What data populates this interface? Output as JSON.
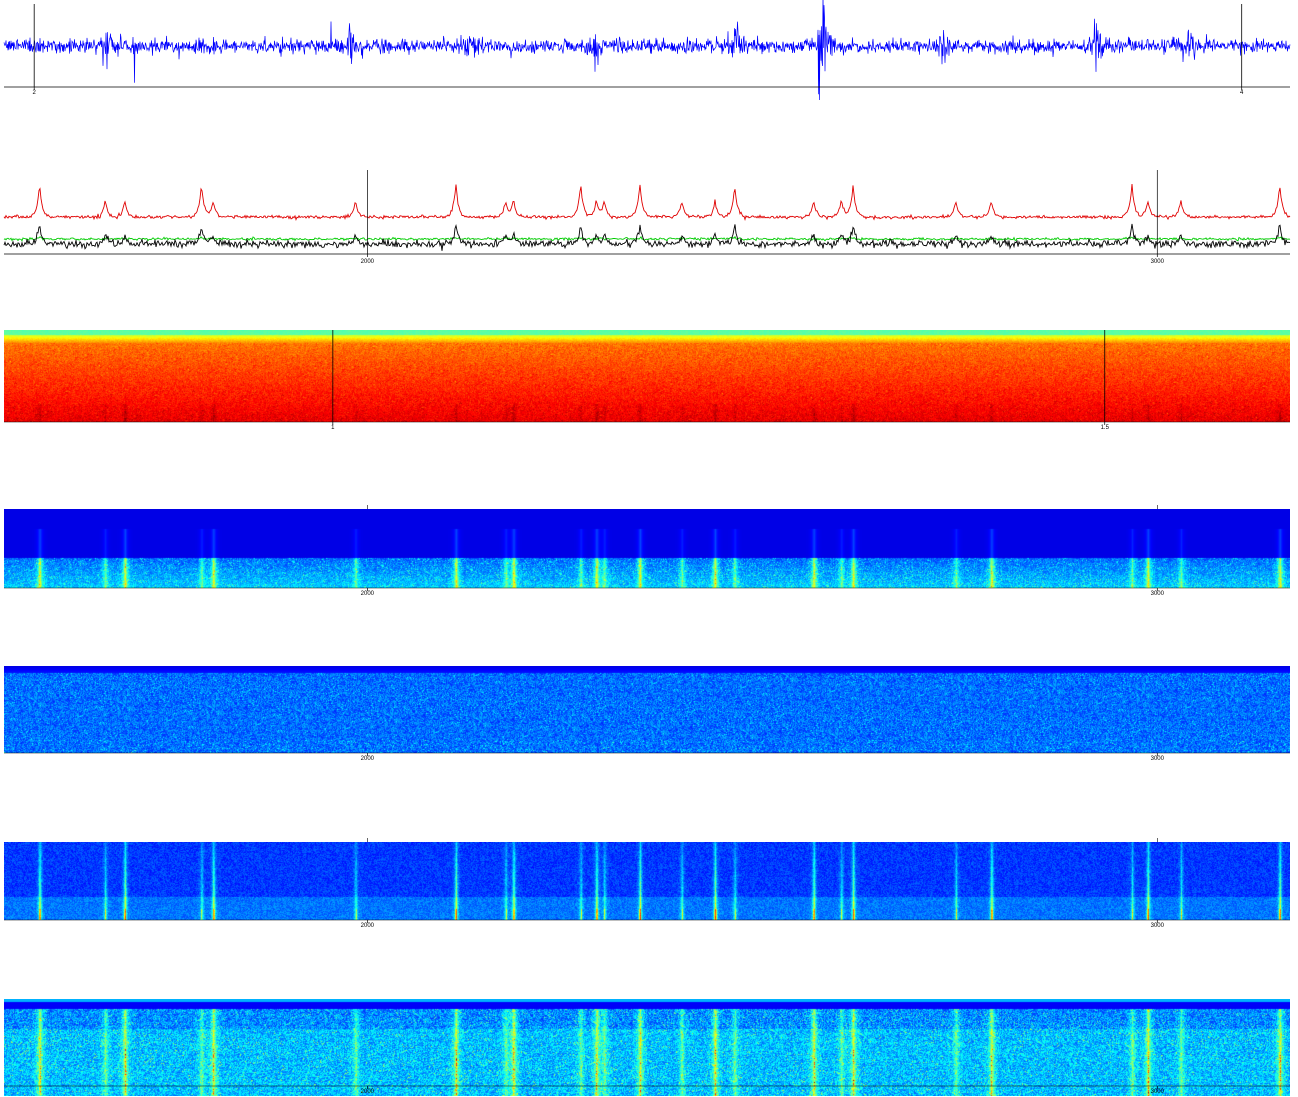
{
  "panels": [
    {
      "id": "waveform",
      "chart_data": {
        "type": "line",
        "series": [
          {
            "color": "#0000ff",
            "values": []
          }
        ],
        "xlim": [
          1.95,
          4.08
        ],
        "cursors": [
          2.0,
          4.0
        ],
        "ticks": [
          {
            "value": 2,
            "label": "2"
          },
          {
            "value": 4,
            "label": "4"
          }
        ],
        "bursts": [
          0.08,
          0.27,
          0.36,
          0.46,
          0.57,
          0.64,
          0.73,
          0.85,
          0.92
        ]
      }
    },
    {
      "id": "envelopes",
      "chart_data": {
        "type": "line",
        "series": [
          {
            "color": "#e00000",
            "values": []
          },
          {
            "color": "#00cc00",
            "values": []
          },
          {
            "color": "#000000",
            "values": []
          }
        ],
        "xlim": [
          1540,
          3168
        ],
        "cursors": [
          2000,
          3000
        ],
        "ticks": [
          {
            "value": 2000,
            "label": "2000"
          },
          {
            "value": 3000,
            "label": "3000"
          }
        ],
        "peaks": [
          1585,
          1668,
          1693,
          1790,
          1805,
          1985,
          2112,
          2175,
          2185,
          2270,
          2290,
          2300,
          2345,
          2398,
          2440,
          2465,
          2565,
          2600,
          2615,
          2745,
          2790,
          2968,
          2988,
          3030,
          3155
        ]
      }
    },
    {
      "id": "spectrogram-warm",
      "chart_data": {
        "type": "heatmap",
        "colormap": "jet",
        "xlim": [
          0.787,
          1.62
        ],
        "cursors": [
          1.0,
          1.5
        ],
        "ticks": [
          {
            "value": 1,
            "label": "1"
          },
          {
            "value": 1.5,
            "label": "1.5"
          }
        ]
      }
    },
    {
      "id": "spectrogram-low-band",
      "chart_data": {
        "type": "heatmap",
        "colormap": "jet",
        "xlim": [
          1540,
          3168
        ],
        "ticks": [
          {
            "value": 2000,
            "label": "2000"
          },
          {
            "value": 3000,
            "label": "3000"
          }
        ]
      }
    },
    {
      "id": "spectrogram-noise",
      "chart_data": {
        "type": "heatmap",
        "colormap": "jet",
        "xlim": [
          1540,
          3168
        ],
        "ticks": [
          {
            "value": 2000,
            "label": "2000"
          },
          {
            "value": 3000,
            "label": "3000"
          }
        ]
      }
    },
    {
      "id": "spectrogram-transients",
      "chart_data": {
        "type": "heatmap",
        "colormap": "jet",
        "xlim": [
          1540,
          3168
        ],
        "ticks": [
          {
            "value": 2000,
            "label": "2000"
          },
          {
            "value": 3000,
            "label": "3000"
          }
        ]
      }
    },
    {
      "id": "spectrogram-full",
      "chart_data": {
        "type": "heatmap",
        "colormap": "jet",
        "xlim": [
          1540,
          3168
        ],
        "ticks": [
          {
            "value": 2000,
            "label": "2000"
          },
          {
            "value": 3000,
            "label": "3000"
          }
        ]
      }
    }
  ]
}
